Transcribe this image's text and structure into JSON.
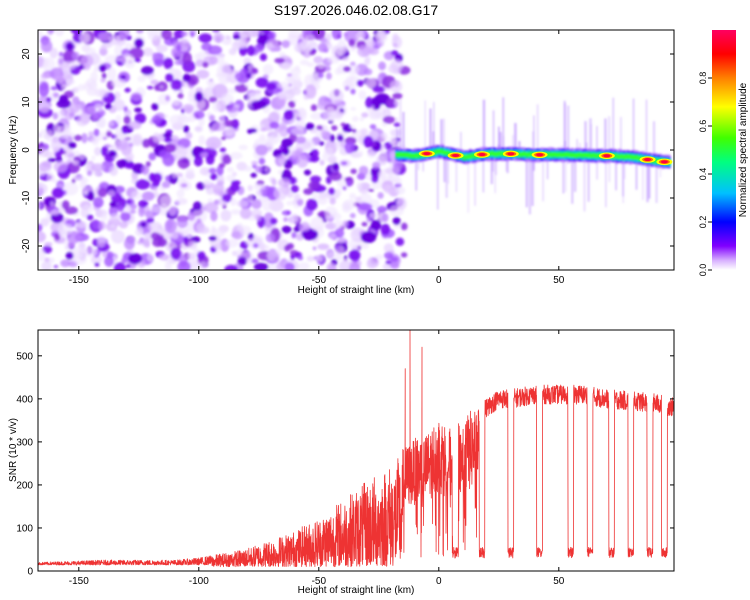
{
  "figure_title": "S197.2026.046.02.08.G17",
  "chart_data": [
    {
      "type": "heatmap",
      "id": "spectrogram",
      "title": "",
      "xlabel": "Height of straight line (km)",
      "ylabel": "Frequency (Hz)",
      "xlim": [
        -167,
        98
      ],
      "ylim": [
        -25,
        25
      ],
      "xticks": [
        -150,
        -100,
        -50,
        0,
        50
      ],
      "yticks": [
        -20,
        -10,
        0,
        10,
        20
      ],
      "noise_region_x": [
        -167,
        -16
      ],
      "signal_region_x": [
        -16,
        98
      ],
      "signal_track": {
        "x": [
          -18,
          -10,
          0,
          10,
          20,
          30,
          40,
          50,
          60,
          70,
          80,
          90,
          96
        ],
        "freq_hz": [
          -1.0,
          -1.2,
          -0.3,
          -1.5,
          -0.8,
          -0.8,
          -1.0,
          -1.0,
          -1.1,
          -1.2,
          -1.5,
          -2.2,
          -2.6
        ]
      },
      "peaks_x": [
        -5,
        7,
        18,
        30,
        42,
        70,
        87,
        94
      ],
      "colorbar": {
        "label": "Normalized spectral amplitude",
        "range": [
          0.0,
          1.0
        ],
        "ticks": [
          "0.0",
          "0.2",
          "0.4",
          "0.6",
          "0.8"
        ],
        "colormap": [
          "#ffffff",
          "#a000ff",
          "#0000ff",
          "#00e0ff",
          "#00ff00",
          "#ffff00",
          "#ff8000",
          "#ff0000",
          "#ff0080"
        ]
      }
    },
    {
      "type": "line",
      "id": "snr",
      "title": "",
      "xlabel": "Height of straight line (km)",
      "ylabel": "SNR (10 * v/v)",
      "xlim": [
        -167,
        98
      ],
      "ylim": [
        0,
        560
      ],
      "xticks": [
        -150,
        -100,
        -50,
        0,
        50
      ],
      "yticks": [
        0,
        100,
        200,
        300,
        400,
        500
      ],
      "color": "#ee3333",
      "series": [
        {
          "name": "SNR envelope",
          "x": [
            -167,
            -140,
            -110,
            -100,
            -90,
            -80,
            -70,
            -60,
            -50,
            -40,
            -30,
            -20,
            -15,
            -12,
            -10,
            -5,
            0,
            5,
            10,
            15,
            20,
            25,
            30,
            40,
            50,
            60,
            70,
            80,
            90,
            98
          ],
          "y": [
            20,
            25,
            25,
            30,
            40,
            50,
            70,
            90,
            120,
            160,
            200,
            240,
            260,
            270,
            280,
            290,
            330,
            300,
            320,
            350,
            380,
            400,
            400,
            410,
            410,
            410,
            400,
            395,
            390,
            380
          ]
        }
      ],
      "spikes": [
        {
          "x": -12,
          "y": 560
        },
        {
          "x": -7,
          "y": 520
        },
        {
          "x": -14,
          "y": 470
        }
      ],
      "dropouts_x": [
        7,
        18,
        30,
        42,
        55,
        63,
        72,
        80,
        88,
        94
      ]
    }
  ]
}
